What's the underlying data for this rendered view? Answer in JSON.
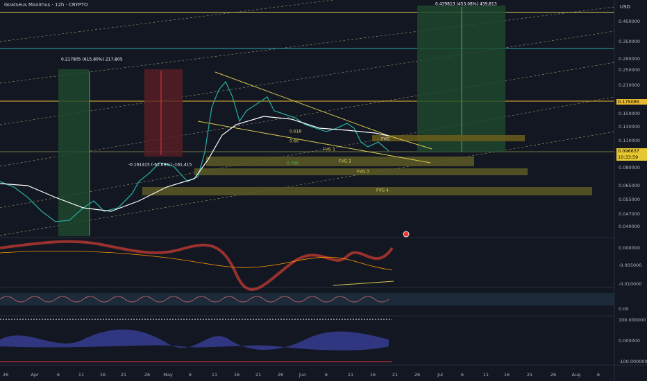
{
  "header": {
    "title": "Goatseus Maximus · 12h · CRYPTO",
    "currency": "USD"
  },
  "price_axis": [
    "0.450000",
    "0.350000",
    "0.290000",
    "0.250000",
    "0.210000",
    "0.150000",
    "0.130000",
    "0.110000",
    "0.080000",
    "0.065000",
    "0.055000",
    "0.047000",
    "0.040000"
  ],
  "price_tags": {
    "level": "0.175085",
    "last": "0.096637",
    "countdown": "10:33:59"
  },
  "annotations": {
    "measure_1": "0.439813 (453.08%) 439,813",
    "measure_2": "0.217805 (615.80%) 217,805",
    "measure_3": "-0.161415 (-63.69%) -161,415",
    "fib_1": "0.618",
    "fib_2": "0.66",
    "fib_3": "0.786",
    "fvg_0": "FVG",
    "fvg_1": "FVG 1",
    "fvg_2": "FVG 2",
    "fvg_3": "FVG 3",
    "fvg_4": "FVG 4"
  },
  "macd_axis": [
    "0.000000",
    "-0.005000",
    "-0.010000"
  ],
  "rsi_axis": [
    "0.00"
  ],
  "osc_axis": [
    "100.000000",
    "0.000000",
    "-100.000000"
  ],
  "date_axis": [
    "26",
    "Apr",
    "6",
    "11",
    "16",
    "21",
    "26",
    "May",
    "6",
    "11",
    "16",
    "21",
    "26",
    "Jun",
    "6",
    "11",
    "16",
    "21",
    "26",
    "Jul",
    "6",
    "11",
    "16",
    "21",
    "26",
    "Aug",
    "6"
  ]
}
